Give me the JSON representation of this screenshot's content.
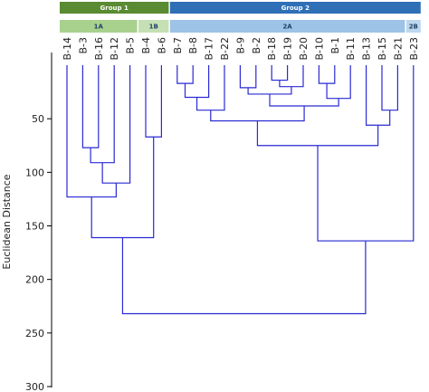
{
  "chart_data": {
    "type": "dendrogram",
    "ylabel": "Euclidean Distance",
    "ylim": [
      0,
      300
    ],
    "yticks": [
      50,
      100,
      150,
      200,
      250,
      300
    ],
    "leaves": [
      "B-14",
      "B-3",
      "B-16",
      "B-12",
      "B-5",
      "B-4",
      "B-6",
      "B-7",
      "B-8",
      "B-17",
      "B-22",
      "B-9",
      "B-2",
      "B-18",
      "B-19",
      "B-20",
      "B-10",
      "B-1",
      "B-11",
      "B-13",
      "B-15",
      "B-21",
      "B-23"
    ],
    "merges": [
      {
        "children": [
          "B-3",
          "B-16"
        ],
        "height": 77
      },
      {
        "children": [
          "B-7",
          "B-8"
        ],
        "height": 17
      },
      {
        "children": [
          "B-18",
          "B-19"
        ],
        "height": 14
      },
      {
        "children": [
          "B-10",
          "B-1"
        ],
        "height": 17
      },
      {
        "children": [
          "B-9",
          "B-2"
        ],
        "height": 21
      },
      {
        "children": [
          "B-15",
          "B-21"
        ],
        "height": 42
      },
      {
        "children": [
          [
            "B-3",
            "B-16"
          ],
          "B-12"
        ],
        "height": 91
      },
      {
        "children": [
          [
            "B-18",
            "B-19"
          ],
          "B-20"
        ],
        "height": 20
      },
      {
        "children": [
          [
            "B-10",
            "B-1"
          ],
          "B-11"
        ],
        "height": 31
      },
      {
        "children": [
          [
            "B-7",
            "B-8"
          ],
          "B-17"
        ],
        "height": 30
      },
      {
        "children": [
          [
            "B-9",
            "B-2"
          ],
          [
            "B-18",
            "B-19",
            "B-20"
          ]
        ],
        "height": 27
      },
      {
        "children": [
          "B-4",
          "B-6"
        ],
        "height": 67
      },
      {
        "children": [
          [
            "B-9",
            "B-2",
            "B-18",
            "B-19",
            "B-20"
          ],
          [
            "B-10",
            "B-1",
            "B-11"
          ]
        ],
        "height": 38
      },
      {
        "children": [
          [
            "B-7",
            "B-8",
            "B-17"
          ],
          "B-22"
        ],
        "height": 42
      },
      {
        "children": [
          [
            "B-7",
            "B-8",
            "B-17",
            "B-22"
          ],
          [
            "B-9",
            "B-2",
            "B-18",
            "B-19",
            "B-20",
            "B-10",
            "B-1",
            "B-11"
          ]
        ],
        "height": 52
      },
      {
        "children": [
          "B-13",
          [
            "B-15",
            "B-21"
          ]
        ],
        "height": 56
      },
      {
        "children": [
          [
            "B-3",
            "B-16",
            "B-12"
          ],
          "B-5"
        ],
        "height": 110
      },
      {
        "children": [
          [
            "B-7",
            "...",
            "B-11"
          ],
          [
            "B-13",
            "B-15",
            "B-21"
          ]
        ],
        "height": 75
      },
      {
        "children": [
          "B-14",
          [
            "B-3",
            "B-16",
            "B-12",
            "B-5"
          ]
        ],
        "height": 123
      },
      {
        "children": [
          [
            "B-14",
            "...",
            "B-5"
          ],
          [
            "B-4",
            "B-6"
          ]
        ],
        "height": 161
      },
      {
        "children": [
          [
            "B-7",
            "...",
            "B-21"
          ],
          "B-23"
        ],
        "height": 164
      },
      {
        "children": [
          [
            "B-14",
            "...",
            "B-6"
          ],
          [
            "B-7",
            "...",
            "B-23"
          ]
        ],
        "height": 232
      }
    ],
    "groups": [
      {
        "label": "Group 1",
        "leaves": [
          "B-14",
          "B-3",
          "B-16",
          "B-12",
          "B-5",
          "B-4",
          "B-6"
        ],
        "color": "#5a8a32"
      },
      {
        "label": "Group 2",
        "leaves": [
          "B-7",
          "B-8",
          "B-17",
          "B-22",
          "B-9",
          "B-2",
          "B-18",
          "B-19",
          "B-20",
          "B-10",
          "B-1",
          "B-11",
          "B-13",
          "B-15",
          "B-21",
          "B-23"
        ],
        "color": "#2e6fb6"
      }
    ],
    "subgroups": [
      {
        "label": "1A",
        "leaves": [
          "B-14",
          "B-3",
          "B-16",
          "B-12",
          "B-5"
        ],
        "color": "#a9d18e"
      },
      {
        "label": "1B",
        "leaves": [
          "B-4",
          "B-6"
        ],
        "color": "#c5e0b4"
      },
      {
        "label": "2A",
        "leaves": [
          "B-7",
          "B-8",
          "B-17",
          "B-22",
          "B-9",
          "B-2",
          "B-18",
          "B-19",
          "B-20",
          "B-10",
          "B-1",
          "B-11",
          "B-13",
          "B-15",
          "B-21"
        ],
        "color": "#9dc3e6"
      },
      {
        "label": "2B",
        "leaves": [
          "B-23"
        ],
        "color": "#bdd7ee"
      }
    ],
    "line_color": "#2a2ad4",
    "grid": false
  }
}
